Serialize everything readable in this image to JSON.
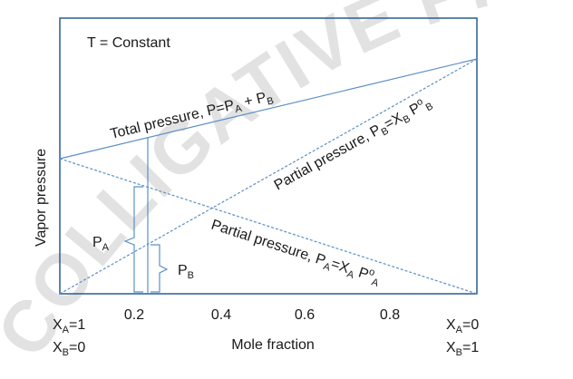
{
  "watermark": "COLLIGATIVE PROPERTIES OF",
  "header": {
    "condition_label": "T = Constant"
  },
  "axes": {
    "y_label": "Vapor pressure",
    "x_label": "Mole fraction",
    "x_ticks": [
      "0.2",
      "0.4",
      "0.6",
      "0.8"
    ]
  },
  "ends": {
    "left": {
      "xa_main": "X",
      "xa_sub": "A",
      "xa_val": "=1",
      "xb_main": "X",
      "xb_sub": "B",
      "xb_val": "=0"
    },
    "right": {
      "xa_main": "X",
      "xa_sub": "A",
      "xa_val": "=0",
      "xb_main": "X",
      "xb_sub": "B",
      "xb_val": "=1"
    }
  },
  "lines": {
    "total": {
      "t1": "Total pressure, P=P",
      "s1": "A",
      "t2": " + P",
      "s2": "B"
    },
    "partial_b": {
      "t1": "Partial pressure, P",
      "s1": "B",
      "t2": "=X",
      "s2": "B",
      "t3": " P",
      "sup": "o",
      "s3": "B"
    },
    "partial_a": {
      "t1": "Partial pressure, P",
      "s1": "A",
      "t2": "=X",
      "s2": "A",
      "t3": " P",
      "sup": "o",
      "s3": "A"
    }
  },
  "braces": {
    "pa_main": "P",
    "pa_sub": "A",
    "pb_main": "P",
    "pb_sub": "B"
  },
  "colors": {
    "frame": "#2b5c8f",
    "line": "#5b8fc7",
    "brace": "#5b8fc7"
  }
}
